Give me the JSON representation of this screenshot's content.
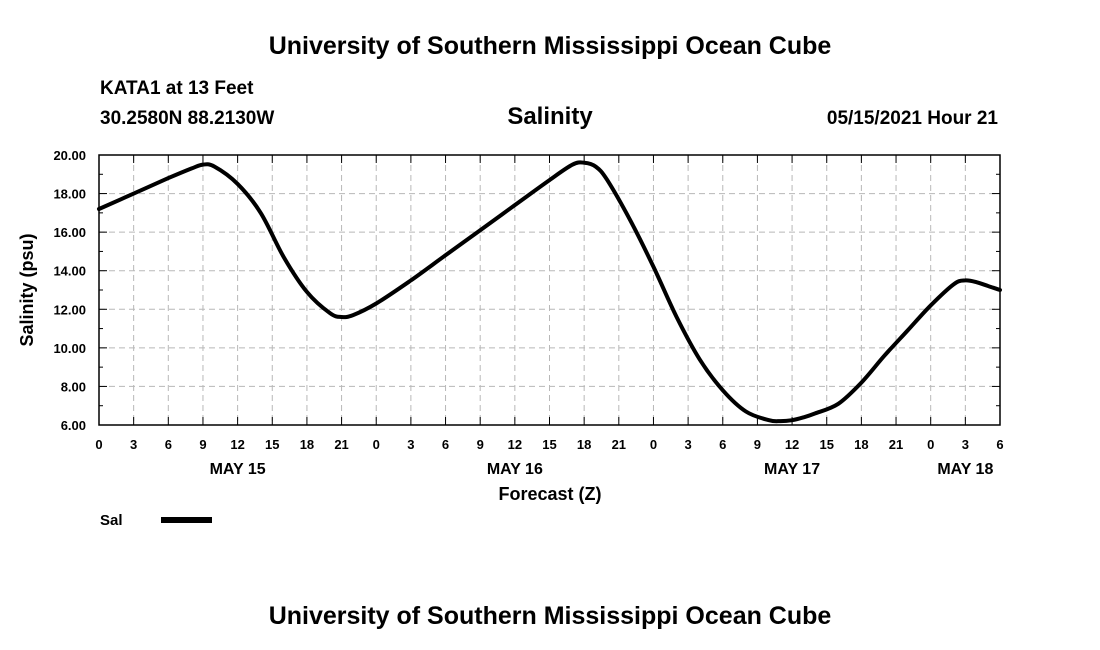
{
  "header": {
    "title": "University of Southern Mississippi Ocean Cube",
    "station": "KATA1 at 13 Feet",
    "coords": "30.2580N  88.2130W",
    "chart_title": "Salinity",
    "timestamp": "05/15/2021 Hour 21"
  },
  "footer": {
    "title": "University of Southern Mississippi Ocean Cube"
  },
  "chart_data": {
    "type": "line",
    "title": "Salinity",
    "xlabel": "Forecast (Z)",
    "ylabel": "Salinity (psu)",
    "ylim": [
      6,
      20
    ],
    "yticks": [
      "6.00",
      "8.00",
      "10.00",
      "12.00",
      "14.00",
      "16.00",
      "18.00",
      "20.00"
    ],
    "xlim": [
      0,
      78
    ],
    "xtick_labels": [
      "0",
      "3",
      "6",
      "9",
      "12",
      "15",
      "18",
      "21",
      "0",
      "3",
      "6",
      "9",
      "12",
      "15",
      "18",
      "21",
      "0",
      "3",
      "6",
      "9",
      "12",
      "15",
      "18",
      "21",
      "0",
      "3",
      "6"
    ],
    "day_labels": [
      {
        "label": "MAY 15",
        "hour": 12
      },
      {
        "label": "MAY 16",
        "hour": 36
      },
      {
        "label": "MAY 17",
        "hour": 60
      },
      {
        "label": "MAY 18",
        "hour": 75
      }
    ],
    "legend": [
      {
        "name": "Sal",
        "color": "#000000"
      }
    ],
    "grid": true,
    "series": [
      {
        "name": "Sal",
        "x": [
          0,
          3,
          6,
          8,
          9,
          10,
          12,
          14,
          16,
          18,
          20,
          21,
          22,
          24,
          27,
          30,
          33,
          36,
          39,
          41,
          42,
          43,
          44,
          46,
          48,
          50,
          52,
          54,
          56,
          58,
          59,
          60,
          61,
          62,
          64,
          66,
          68,
          70,
          72,
          74,
          75,
          76,
          77,
          78
        ],
        "y": [
          17.2,
          18.0,
          18.8,
          19.3,
          19.5,
          19.4,
          18.5,
          17.0,
          14.7,
          12.9,
          11.8,
          11.6,
          11.7,
          12.3,
          13.5,
          14.8,
          16.1,
          17.4,
          18.7,
          19.5,
          19.6,
          19.4,
          18.7,
          16.6,
          14.2,
          11.6,
          9.4,
          7.8,
          6.7,
          6.25,
          6.2,
          6.25,
          6.4,
          6.6,
          7.1,
          8.2,
          9.6,
          10.9,
          12.2,
          13.3,
          13.5,
          13.4,
          13.2,
          13.0
        ]
      }
    ]
  }
}
